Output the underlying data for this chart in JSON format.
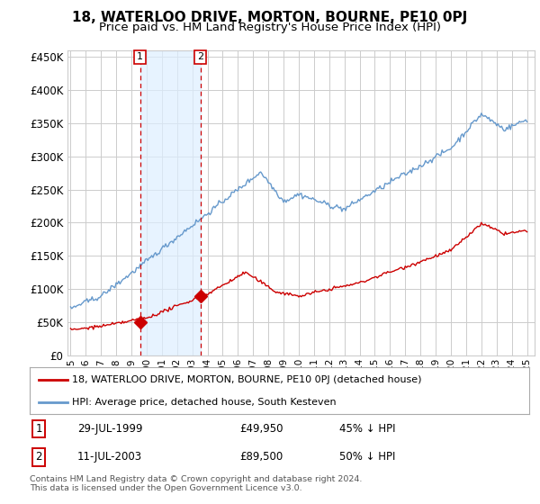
{
  "title": "18, WATERLOO DRIVE, MORTON, BOURNE, PE10 0PJ",
  "subtitle": "Price paid vs. HM Land Registry's House Price Index (HPI)",
  "ytick_values": [
    0,
    50000,
    100000,
    150000,
    200000,
    250000,
    300000,
    350000,
    400000,
    450000
  ],
  "ylim": [
    0,
    460000
  ],
  "xlim_start": 1994.8,
  "xlim_end": 2025.5,
  "sale1_x": 1999.57,
  "sale1_y": 49950,
  "sale1_label": "1",
  "sale1_date": "29-JUL-1999",
  "sale1_price": "£49,950",
  "sale1_hpi": "45% ↓ HPI",
  "sale2_x": 2003.53,
  "sale2_y": 89500,
  "sale2_label": "2",
  "sale2_date": "11-JUL-2003",
  "sale2_price": "£89,500",
  "sale2_hpi": "50% ↓ HPI",
  "line1_color": "#cc0000",
  "line2_color": "#6699cc",
  "shade_color": "#ddeeff",
  "vline_color": "#cc0000",
  "background_color": "#ffffff",
  "grid_color": "#cccccc",
  "legend1_label": "18, WATERLOO DRIVE, MORTON, BOURNE, PE10 0PJ (detached house)",
  "legend2_label": "HPI: Average price, detached house, South Kesteven",
  "footer": "Contains HM Land Registry data © Crown copyright and database right 2024.\nThis data is licensed under the Open Government Licence v3.0.",
  "title_fontsize": 11,
  "subtitle_fontsize": 9.5
}
